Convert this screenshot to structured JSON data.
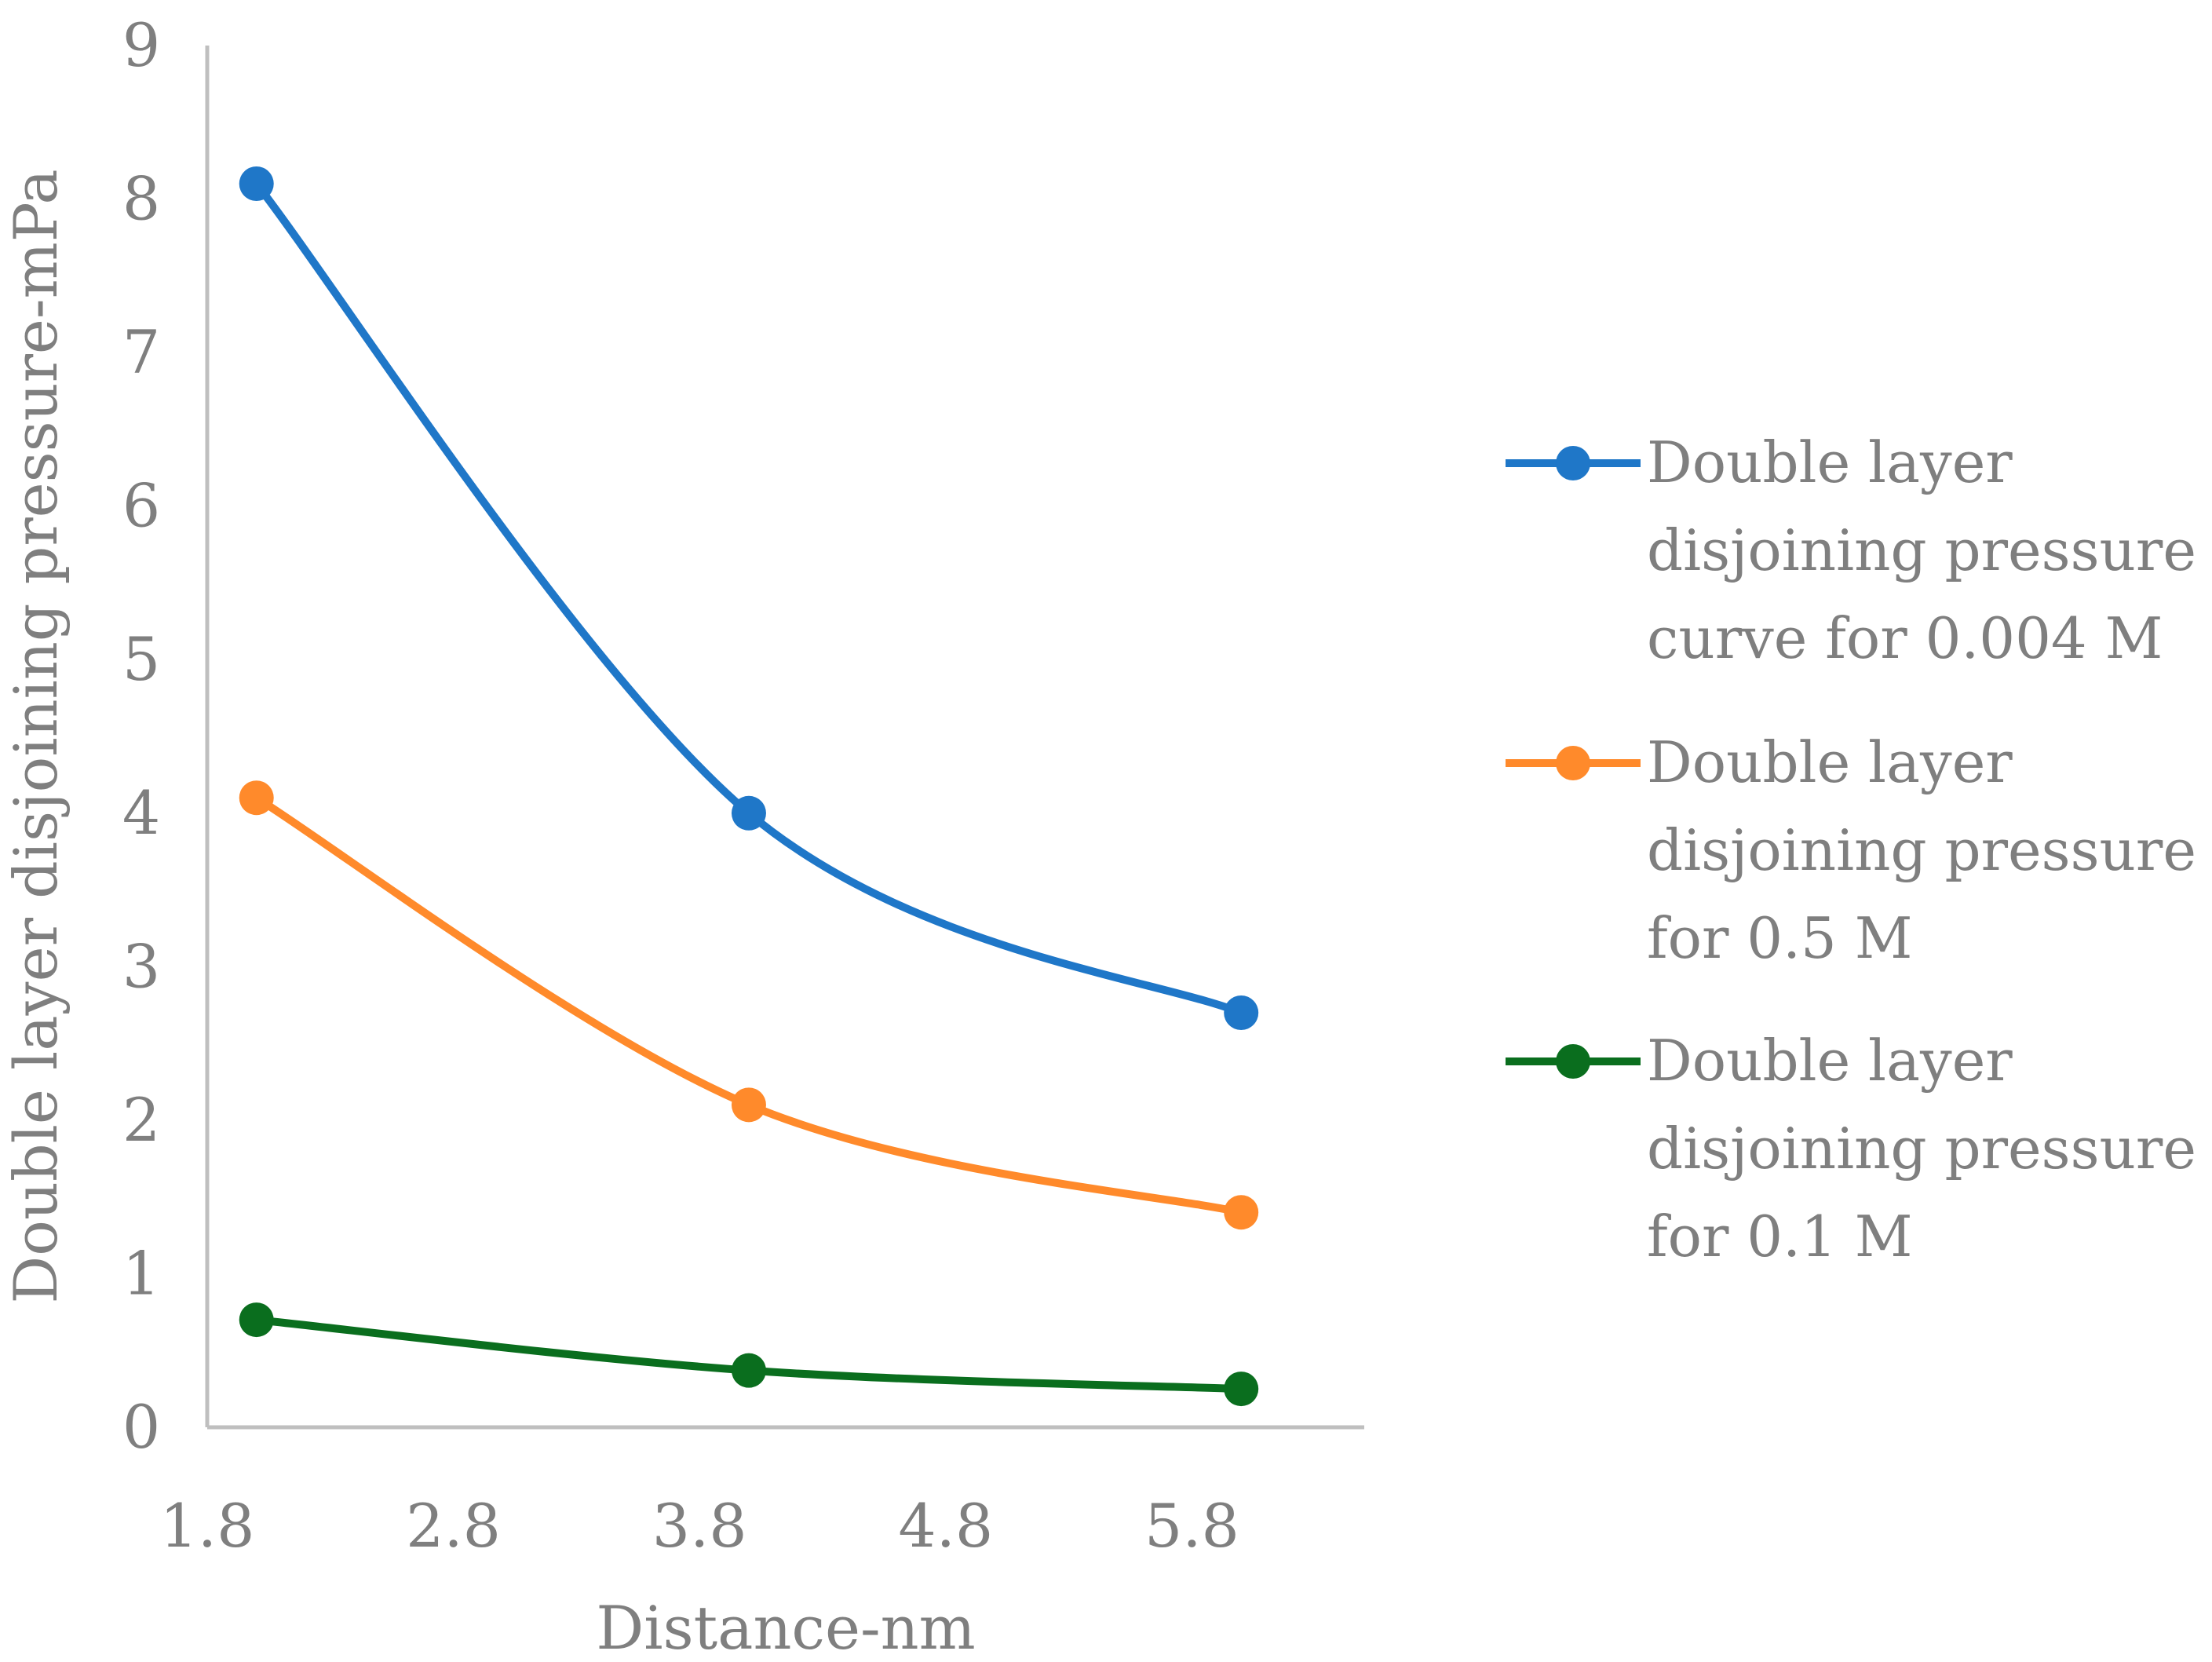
{
  "chart_data": {
    "type": "line",
    "xlabel": "Distance-nm",
    "ylabel": "Double layer disjoining pressure-mPa",
    "xlim": [
      1.8,
      6.5
    ],
    "ylim": [
      0,
      9
    ],
    "xticks": [
      "1.8",
      "2.8",
      "3.8",
      "4.8",
      "5.8"
    ],
    "yticks": [
      "0",
      "1",
      "2",
      "3",
      "4",
      "5",
      "6",
      "7",
      "8",
      "9"
    ],
    "grid": false,
    "legend_position": "right",
    "smooth": true,
    "series": [
      {
        "name": "Double layer disjoining pressure curve for 0.004 M",
        "legend_lines": [
          "Double layer",
          "disjoining pressure",
          "curve for 0.004 M"
        ],
        "color": "#1f77c8",
        "x": [
          2,
          4,
          6
        ],
        "y": [
          8.1,
          4.0,
          2.7
        ]
      },
      {
        "name": "Double layer disjoining pressure for 0.5 M",
        "legend_lines": [
          "Double layer",
          "disjoining pressure",
          "for 0.5 M"
        ],
        "color": "#ff8a2b",
        "x": [
          2,
          4,
          6
        ],
        "y": [
          4.1,
          2.1,
          1.4
        ]
      },
      {
        "name": "Double layer disjoining pressure for 0.1 M",
        "legend_lines": [
          "Double layer",
          "disjoining pressure",
          "for 0.1 M"
        ],
        "color": "#0a6e1e",
        "x": [
          2,
          4,
          6
        ],
        "y": [
          0.7,
          0.37,
          0.25
        ]
      }
    ]
  }
}
